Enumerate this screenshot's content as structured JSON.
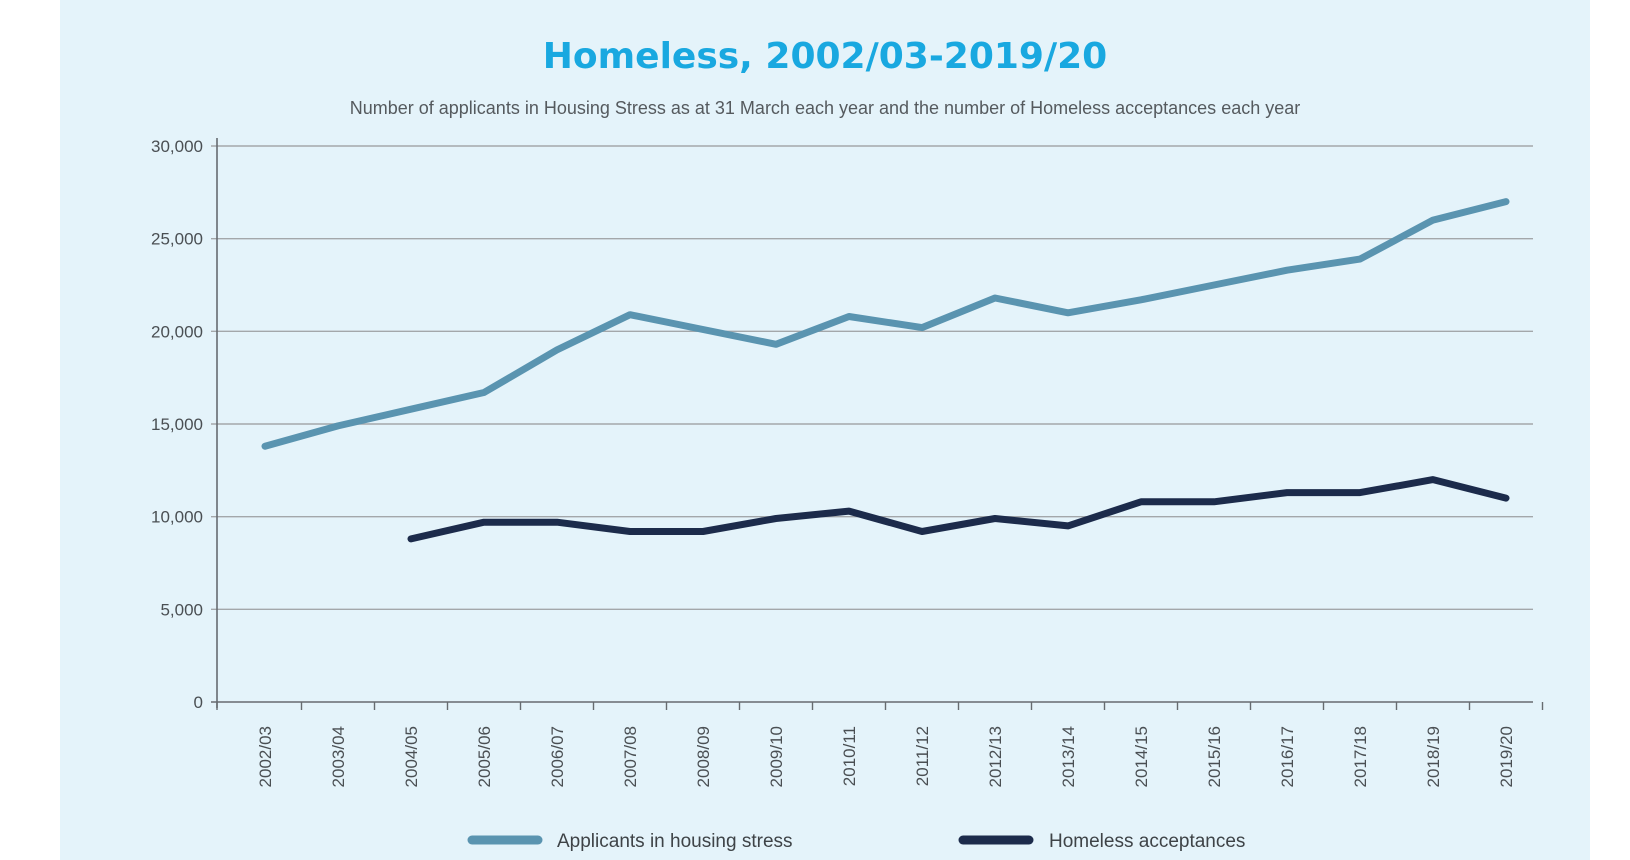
{
  "chart_data": {
    "type": "line",
    "title": "Homeless, 2002/03-2019/20",
    "subtitle": "Number of applicants in Housing Stress as at 31 March each year and the number of Homeless acceptances each year",
    "xlabel": "",
    "ylabel": "",
    "ylim": [
      0,
      30000
    ],
    "yticks": [
      0,
      5000,
      10000,
      15000,
      20000,
      25000,
      30000
    ],
    "ytick_labels": [
      "0",
      "5,000",
      "10,000",
      "15,000",
      "20,000",
      "25,000",
      "30,000"
    ],
    "grid": "horizontal",
    "legend_position": "bottom",
    "categories": [
      "2002/03",
      "2003/04",
      "2004/05",
      "2005/06",
      "2006/07",
      "2007/08",
      "2008/09",
      "2009/10",
      "2010/11",
      "2011/12",
      "2012/13",
      "2013/14",
      "2014/15",
      "2015/16",
      "2016/17",
      "2017/18",
      "2018/19",
      "2019/20"
    ],
    "series": [
      {
        "name": "Applicants in housing stress",
        "color": "#5a94b0",
        "values": [
          13800,
          14900,
          15800,
          16700,
          19000,
          20900,
          20100,
          19300,
          20800,
          20200,
          21800,
          21000,
          21700,
          22500,
          23300,
          23900,
          26000,
          27000
        ]
      },
      {
        "name": "Homeless acceptances",
        "color": "#1c2b4b",
        "values": [
          null,
          null,
          8800,
          9700,
          9700,
          9200,
          9200,
          9900,
          10300,
          9200,
          9900,
          9500,
          10800,
          10800,
          11300,
          11300,
          12000,
          11000
        ]
      }
    ]
  }
}
